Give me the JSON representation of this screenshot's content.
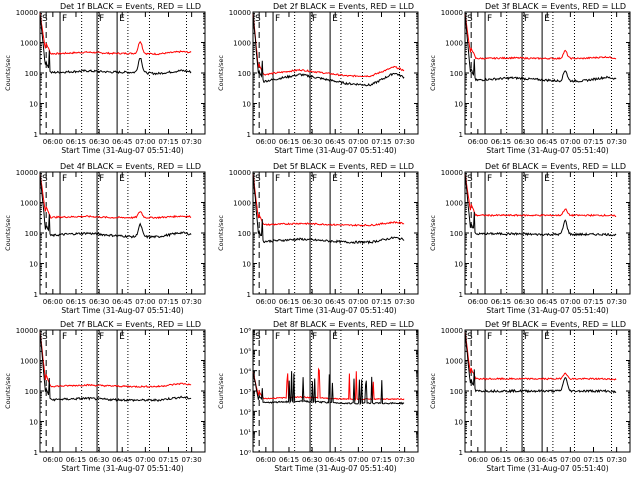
{
  "figure": {
    "xlabel": "Start Time (31-Aug-07 05:51:40)",
    "ylabel": "Counts/sec"
  },
  "chart_data": [
    {
      "title": "Det 1f BLACK = Events, RED = LLD",
      "type": "line",
      "ylim": [
        1,
        10000
      ],
      "yscale": "log",
      "ytick_labels": [
        "1",
        "10",
        "100",
        "1000",
        "10000"
      ],
      "xtick_labels": [
        "06:00",
        "06:15",
        "06:30",
        "06:45",
        "07:00",
        "07:15",
        "07:30"
      ],
      "markers": [
        "S",
        "F",
        "F",
        "E"
      ],
      "series": [
        {
          "name": "Events",
          "color": "#000000",
          "level": 100,
          "wave": [
            0,
            0.03,
            0.07,
            0.03,
            0.02,
            -0.02,
            0.08,
            -0.02
          ],
          "peak": 0.5
        },
        {
          "name": "LLD",
          "color": "#ff0000",
          "level": 420,
          "wave": [
            0,
            0.02,
            0.06,
            0.02,
            0.02,
            0,
            0.08,
            0
          ],
          "peak": 0.4
        }
      ]
    },
    {
      "title": "Det 2f BLACK = Events, RED = LLD",
      "type": "line",
      "ylim": [
        1,
        10000
      ],
      "yscale": "log",
      "ytick_labels": [
        "1",
        "10",
        "100",
        "1000",
        "10000"
      ],
      "xtick_labels": [
        "06:00",
        "06:15",
        "06:30",
        "06:45",
        "07:00",
        "07:15",
        "07:30"
      ],
      "markers": [
        "S",
        "F",
        "F",
        "E"
      ],
      "series": [
        {
          "name": "Events",
          "color": "#000000",
          "level": 45,
          "wave": [
            0,
            0.15,
            0.3,
            0.15,
            0,
            -0.05,
            0.35,
            0
          ],
          "peak": 0
        },
        {
          "name": "LLD",
          "color": "#ff0000",
          "level": 80,
          "wave": [
            0,
            0.1,
            0.2,
            0.1,
            0,
            0,
            0.3,
            0
          ],
          "peak": 0
        }
      ]
    },
    {
      "title": "Det 3f BLACK = Events, RED = LLD",
      "type": "line",
      "ylim": [
        1,
        10000
      ],
      "yscale": "log",
      "ytick_labels": [
        "1",
        "10",
        "100",
        "1000",
        "10000"
      ],
      "xtick_labels": [
        "06:00",
        "06:15",
        "06:30",
        "06:45",
        "07:00",
        "07:15",
        "07:30"
      ],
      "markers": [
        "S",
        "F",
        "F",
        "E"
      ],
      "series": [
        {
          "name": "Events",
          "color": "#000000",
          "level": 55,
          "wave": [
            0,
            0.05,
            0.1,
            0.05,
            0,
            0,
            0.12,
            0
          ],
          "peak": 0.35
        },
        {
          "name": "LLD",
          "color": "#ff0000",
          "level": 300,
          "wave": [
            0,
            0,
            0.02,
            0,
            0,
            0,
            0.05,
            -0.05
          ],
          "peak": 0.25
        }
      ]
    },
    {
      "title": "Det 4f BLACK = Events, RED = LLD",
      "type": "line",
      "ylim": [
        1,
        10000
      ],
      "yscale": "log",
      "ytick_labels": [
        "1",
        "10",
        "100",
        "1000",
        "10000"
      ],
      "xtick_labels": [
        "06:00",
        "06:15",
        "06:30",
        "06:45",
        "07:00",
        "07:15",
        "07:30"
      ],
      "markers": [
        "S",
        "F",
        "F",
        "E"
      ],
      "series": [
        {
          "name": "Events",
          "color": "#000000",
          "level": 75,
          "wave": [
            0,
            0.08,
            0.12,
            0.05,
            0,
            0,
            0.14,
            0
          ],
          "peak": 0.4
        },
        {
          "name": "LLD",
          "color": "#ff0000",
          "level": 320,
          "wave": [
            0,
            0.02,
            0.04,
            0,
            0,
            0,
            0.05,
            0
          ],
          "peak": 0.2
        }
      ]
    },
    {
      "title": "Det 5f BLACK = Events, RED = LLD",
      "type": "line",
      "ylim": [
        1,
        10000
      ],
      "yscale": "log",
      "ytick_labels": [
        "1",
        "10",
        "100",
        "1000",
        "10000"
      ],
      "xtick_labels": [
        "06:00",
        "06:15",
        "06:30",
        "06:45",
        "07:00",
        "07:15",
        "07:30"
      ],
      "markers": [
        "S",
        "F",
        "F",
        "E"
      ],
      "series": [
        {
          "name": "Events",
          "color": "#000000",
          "level": 50,
          "wave": [
            0,
            0.05,
            0.1,
            0.05,
            0,
            0,
            0.15,
            0
          ],
          "peak": 0
        },
        {
          "name": "LLD",
          "color": "#ff0000",
          "level": 180,
          "wave": [
            0,
            0.03,
            0.06,
            0.03,
            0,
            0,
            0.1,
            0
          ],
          "peak": 0
        }
      ]
    },
    {
      "title": "Det 6f BLACK = Events, RED = LLD",
      "type": "line",
      "ylim": [
        1,
        10000
      ],
      "yscale": "log",
      "ytick_labels": [
        "1",
        "10",
        "100",
        "1000",
        "10000"
      ],
      "xtick_labels": [
        "06:00",
        "06:15",
        "06:30",
        "06:45",
        "07:00",
        "07:15",
        "07:30"
      ],
      "markers": [
        "S",
        "F",
        "F",
        "E"
      ],
      "series": [
        {
          "name": "Events",
          "color": "#000000",
          "level": 90,
          "wave": [
            0,
            0.02,
            0.02,
            0,
            0,
            0,
            0,
            -0.05
          ],
          "peak": 0.45
        },
        {
          "name": "LLD",
          "color": "#ff0000",
          "level": 380,
          "wave": [
            0,
            0,
            0,
            0,
            0,
            0,
            0,
            -0.05
          ],
          "peak": 0.2
        }
      ]
    },
    {
      "title": "Det 7f BLACK = Events, RED = LLD",
      "type": "line",
      "ylim": [
        1,
        10000
      ],
      "yscale": "log",
      "ytick_labels": [
        "1",
        "10",
        "100",
        "1000",
        "10000"
      ],
      "xtick_labels": [
        "06:00",
        "06:15",
        "06:30",
        "06:45",
        "07:00",
        "07:15",
        "07:30"
      ],
      "markers": [
        "S",
        "F",
        "F",
        "E"
      ],
      "series": [
        {
          "name": "Events",
          "color": "#000000",
          "level": 50,
          "wave": [
            0,
            0.03,
            0.06,
            0.02,
            0,
            0,
            0.1,
            0
          ],
          "peak": 0
        },
        {
          "name": "LLD",
          "color": "#ff0000",
          "level": 140,
          "wave": [
            0,
            0.02,
            0.05,
            0.02,
            0,
            0,
            0.1,
            0
          ],
          "peak": 0
        }
      ]
    },
    {
      "title": "Det 8f BLACK = Events, RED = LLD",
      "type": "line",
      "ylim": [
        1,
        1000000
      ],
      "yscale": "log",
      "ytick_labels": [
        "10⁰",
        "10¹",
        "10²",
        "10³",
        "10⁴",
        "10⁵",
        "10⁶"
      ],
      "xtick_labels": [
        "06:00",
        "06:15",
        "06:30",
        "06:45",
        "07:00",
        "07:15",
        "07:30"
      ],
      "markers": [
        "S",
        "F",
        "F",
        "E"
      ],
      "series": [
        {
          "name": "Events",
          "color": "#000000",
          "level": 250,
          "wave": [
            0,
            0.05,
            0.1,
            0.05,
            0,
            0,
            0,
            0
          ],
          "peak": 0
        },
        {
          "name": "LLD",
          "color": "#ff0000",
          "level": 400,
          "wave": [
            0,
            0.05,
            0.1,
            0.05,
            0,
            0,
            0,
            0
          ],
          "peak": 0
        }
      ]
    },
    {
      "title": "Det 9f BLACK = Events, RED = LLD",
      "type": "line",
      "ylim": [
        1,
        10000
      ],
      "yscale": "log",
      "ytick_labels": [
        "1",
        "10",
        "100",
        "1000",
        "10000"
      ],
      "xtick_labels": [
        "06:00",
        "06:15",
        "06:30",
        "06:45",
        "07:00",
        "07:15",
        "07:30"
      ],
      "markers": [
        "S",
        "F",
        "F",
        "E"
      ],
      "series": [
        {
          "name": "Events",
          "color": "#000000",
          "level": 100,
          "wave": [
            0,
            0,
            0,
            0,
            0,
            0,
            0,
            -0.1
          ],
          "peak": 0.45
        },
        {
          "name": "LLD",
          "color": "#ff0000",
          "level": 250,
          "wave": [
            0,
            0,
            0,
            0,
            0,
            0,
            0,
            -0.05
          ],
          "peak": 0.2
        }
      ]
    }
  ]
}
